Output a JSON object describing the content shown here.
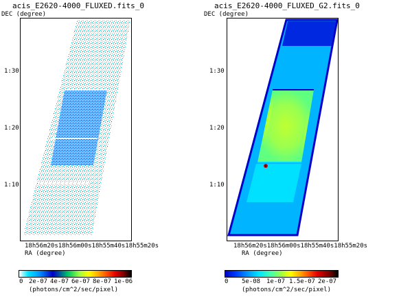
{
  "left_panel": {
    "title": "acis_E2620-4000_FLUXED.fits_0",
    "dec_label": "DEC (degree)",
    "ra_label": "RA (degree)",
    "dec_ticks": [
      "1:30",
      "1:20",
      "1:10"
    ],
    "ra_ticks": "18h56m20s18h56m00s18h55m40s18h55m20s",
    "colorbar_ticks": [
      "0",
      "2e-07",
      "4e-07",
      "6e-07",
      "8e-07",
      "1e-06"
    ],
    "colorbar_unit": "(photons/cm^2/sec/pixel)"
  },
  "right_panel": {
    "title": "acis_E2620-4000_FLUXED_G2.fits_0",
    "dec_label": "DEC (degree)",
    "ra_label": "RA (degree)",
    "dec_ticks": [
      "1:30",
      "1:20",
      "1:10"
    ],
    "ra_ticks": "18h56m20s18h56m00s18h55m40s18h55m20s",
    "colorbar_ticks": [
      "0",
      "5e-08",
      "1e-07",
      "1.5e-07",
      "2e-07"
    ],
    "colorbar_unit": "(photons/cm^2/sec/pixel)"
  },
  "colors": {
    "cmap": [
      "#0000c8",
      "#0040ff",
      "#0096ff",
      "#00e6ff",
      "#40ffb0",
      "#a0ff40",
      "#ffff00",
      "#ffb000",
      "#ff5000",
      "#e00000",
      "#800000",
      "#1a0000"
    ]
  }
}
